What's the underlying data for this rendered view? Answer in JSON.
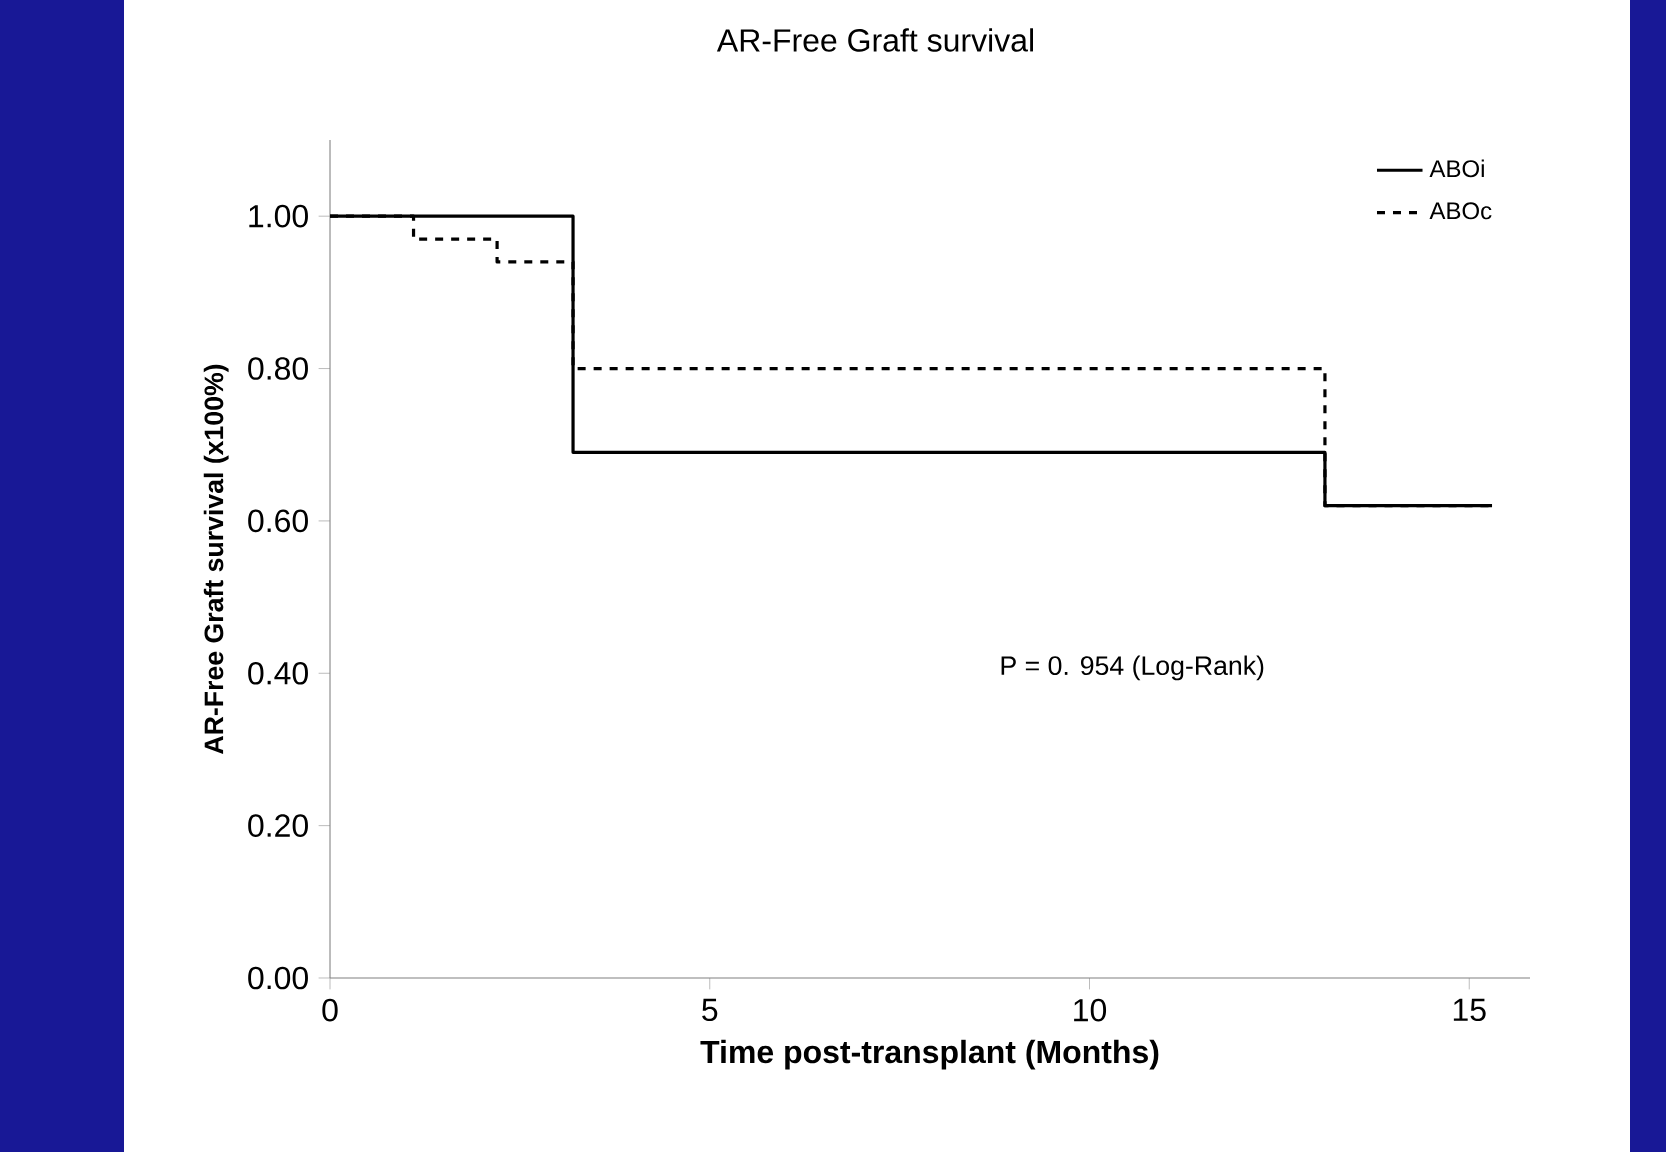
{
  "chart_data": {
    "type": "step",
    "title": "AR-Free Graft survival",
    "xlabel": "Time post-transplant (Months)",
    "ylabel": "AR-Free Graft survival (x100%)",
    "xlim": [
      0,
      15.8
    ],
    "xticks": [
      0,
      5,
      10,
      15
    ],
    "ylim": [
      0,
      1.1
    ],
    "yticks": [
      {
        "value": 0,
        "label": "0.00"
      },
      {
        "value": 0.2,
        "label": "0.20"
      },
      {
        "value": 0.4,
        "label": "0.40"
      },
      {
        "value": 0.6,
        "label": "0.60"
      },
      {
        "value": 0.8,
        "label": "0.80"
      },
      {
        "value": 1.0,
        "label": "1.00"
      }
    ],
    "series": [
      {
        "name": "ABOi",
        "color": "#000000",
        "line_style": "solid",
        "x": [
          0,
          3.2,
          13.1,
          15.3
        ],
        "values": [
          1.0,
          0.69,
          0.62,
          0.62
        ]
      },
      {
        "name": "ABOc",
        "color": "#000000",
        "line_style": "dashed",
        "x": [
          0,
          1.1,
          2.2,
          3.2,
          13.1,
          15.3
        ],
        "values": [
          1.0,
          0.97,
          0.94,
          0.8,
          0.62,
          0.62
        ]
      }
    ],
    "legend": "top right",
    "grid": false,
    "marker": "none",
    "annotations": [
      "P = 0. 954 (Log-Rank)"
    ]
  }
}
